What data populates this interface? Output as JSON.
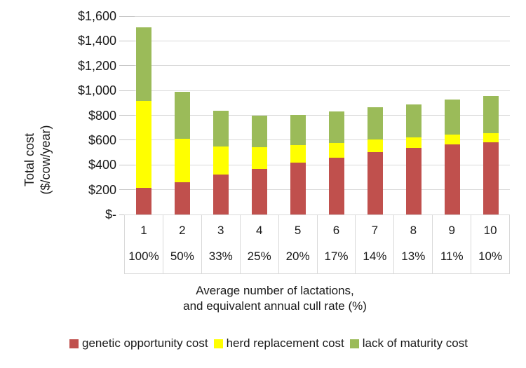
{
  "chart_data": {
    "type": "bar",
    "stacked": true,
    "title": "",
    "ylabel_line1": "Total cost",
    "ylabel_line2": "($/cow/year)",
    "xlabel_line1": "Average number of lactations,",
    "xlabel_line2": "and equivalent annual cull rate (%)",
    "ylim": [
      0,
      1600
    ],
    "ytick_step": 200,
    "yticks": [
      {
        "value": 1600,
        "label": "$1,600"
      },
      {
        "value": 1400,
        "label": "$1,400"
      },
      {
        "value": 1200,
        "label": "$1,200"
      },
      {
        "value": 1000,
        "label": "$1,000"
      },
      {
        "value": 800,
        "label": "$800"
      },
      {
        "value": 600,
        "label": "$600"
      },
      {
        "value": 400,
        "label": "$400"
      },
      {
        "value": 200,
        "label": "$200"
      },
      {
        "value": 0,
        "label": "$-"
      }
    ],
    "grid": true,
    "legend_position": "bottom",
    "categories": [
      "1",
      "2",
      "3",
      "4",
      "5",
      "6",
      "7",
      "8",
      "9",
      "10"
    ],
    "cull_rates": [
      "100%",
      "50%",
      "33%",
      "25%",
      "20%",
      "17%",
      "14%",
      "13%",
      "11%",
      "10%"
    ],
    "series": [
      {
        "name": "genetic opportunity cost",
        "color": "#C0504D",
        "values": [
          215,
          260,
          320,
          370,
          420,
          460,
          505,
          535,
          565,
          585
        ]
      },
      {
        "name": "herd replacement cost",
        "color": "#FFFF00",
        "values": [
          700,
          350,
          230,
          170,
          140,
          115,
          100,
          85,
          80,
          70
        ]
      },
      {
        "name": "lack of maturity cost",
        "color": "#9BBB59",
        "values": [
          595,
          380,
          285,
          260,
          245,
          255,
          260,
          270,
          285,
          300
        ]
      }
    ]
  },
  "colors": {
    "background": "#FFFFFF",
    "gridline": "#D9D9D9",
    "tick": "#C6C6C6",
    "axis_border": "#D9D9D9",
    "text": "#1A1A1A",
    "series_genetic": "#C0504D",
    "series_herd": "#FFFF00",
    "series_maturity": "#9BBB59"
  }
}
